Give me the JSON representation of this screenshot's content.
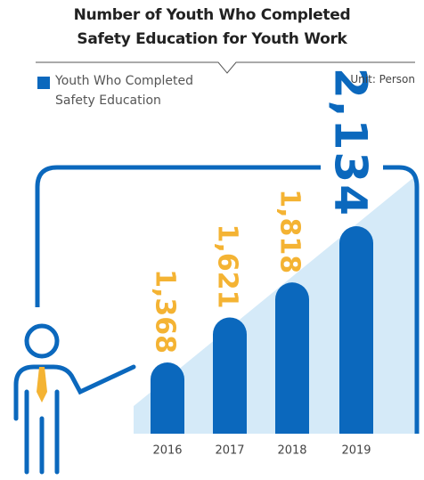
{
  "chart_data": {
    "type": "bar",
    "title": "Number of Youth Who Completed Safety Education for Youth Work",
    "unit": "Unit: Person",
    "categories": [
      "2016",
      "2017",
      "2018",
      "2019"
    ],
    "series": [
      {
        "name": "Youth Who Completed Safety Education",
        "color": "#0b68bd",
        "values": [
          1368,
          1621,
          1818,
          2134
        ],
        "value_labels": [
          "1,368",
          "1,621",
          "1,818",
          "2,134"
        ]
      }
    ],
    "value_label_color": "#f4b333",
    "highlight_label_color": "#0b68bd"
  }
}
